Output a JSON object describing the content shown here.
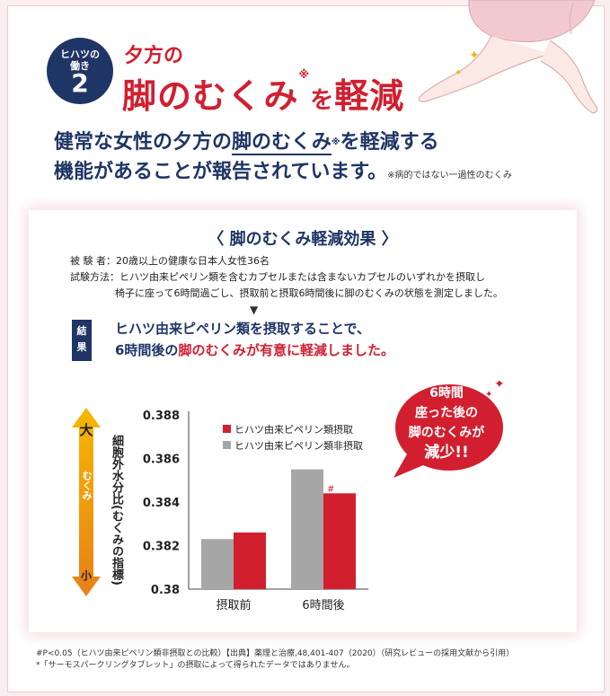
{
  "badge": {
    "top_line": "ヒハツの",
    "mid_line": "働き",
    "number": "2"
  },
  "title": {
    "line1": "夕方の",
    "main": "脚のむくみ",
    "mark": "※",
    "particle": "を",
    "end": "軽減"
  },
  "intro": {
    "a": "健常な女性の夕方の",
    "b": "脚のむくみ",
    "mark": "※",
    "c": "を軽減する",
    "line2": "機能があることが報告されています。",
    "note": "※病的ではない一過性のむくみ"
  },
  "panel": {
    "title": "〈 脚のむくみ軽減効果 〉",
    "subjects_label": "被 験 者：",
    "subjects": "20歳以上の健康な日本人女性36名",
    "method_label": "試験方法：",
    "method1": "ヒハツ由来ピペリン類を含むカプセルまたは含まないカプセルのいずれかを摂取し",
    "method2": "椅子に座って6時間過ごし、摂取前と摂取6時間後に脚のむくみの状態を測定しました。",
    "arrow": "▼",
    "result_tag1": "結",
    "result_tag2": "果",
    "result1": "ヒハツ由来ピペリン類を摂取することで、",
    "result2a": "6時間後の",
    "result2b": "脚のむくみが有意に軽減しました。",
    "scale_big": "大",
    "scale_mid": "むくみ",
    "scale_small": "小",
    "ylabel": "細胞外水分比(むくみの指標)",
    "bubble1": "6時間",
    "bubble2": "座った後の",
    "bubble3": "脚のむくみが",
    "bubble4": "減少!!"
  },
  "chart_data": {
    "type": "bar",
    "categories": [
      "摂取前",
      "6時間後"
    ],
    "series": [
      {
        "name": "ヒハツ由来ピペリン類非摂取",
        "color": "#a6a6a6",
        "values": [
          0.3823,
          0.3855
        ]
      },
      {
        "name": "ヒハツ由来ピペリン類摂取",
        "color": "#d11f2f",
        "values": [
          0.3826,
          0.3844
        ]
      }
    ],
    "yticks": [
      "0.388",
      "0.386",
      "0.384",
      "0.382",
      "0.38"
    ],
    "ylim": [
      0.38,
      0.388
    ],
    "legend_order": [
      1,
      0
    ],
    "annotation": "#",
    "legend": "top-left"
  },
  "footnotes": {
    "line1": "#P<0.05（ヒハツ由来ピペリン類非摂取との比較）【出典】薬理と治療,48,401-407（2020）（研究レビューの採用文献から引用）",
    "line2": "*「サーモスパークリングタブレット」の摂取によって得られたデータではありません。"
  },
  "colors": {
    "navy": "#1f3565",
    "red": "#d11f2f",
    "gray": "#a6a6a6",
    "orange": "#f0a040"
  }
}
